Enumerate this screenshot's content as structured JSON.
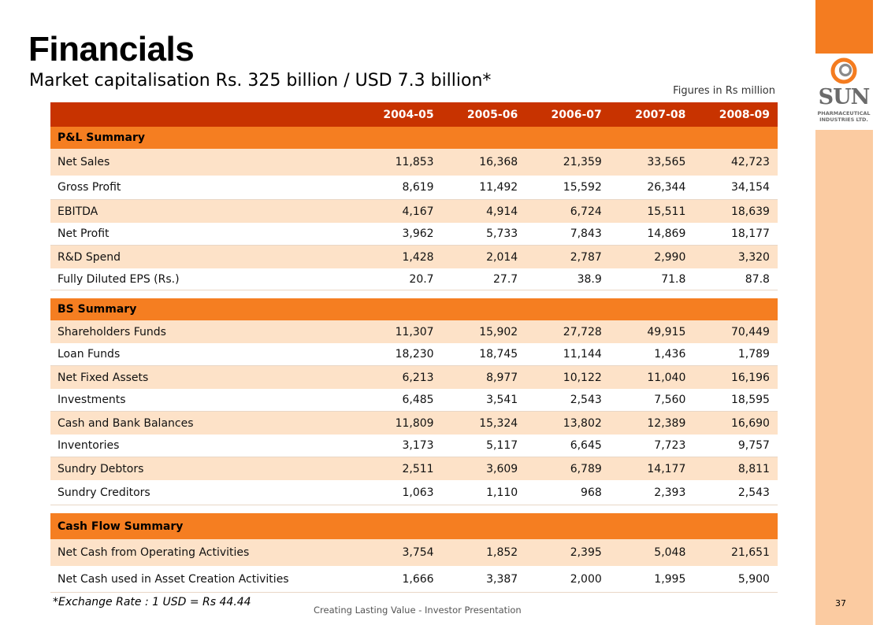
{
  "title": "Financials",
  "subtitle": "Market capitalisation Rs. 325 billion / USD 7.3 billion*",
  "units_note": "Figures in Rs million",
  "logo": {
    "name": "SUN",
    "tagline_1": "PHARMACEUTICAL",
    "tagline_2": "INDUSTRIES LTD.",
    "icon": "sun-pharma-logo-icon"
  },
  "years": [
    "2004-05",
    "2005-06",
    "2006-07",
    "2007-08",
    "2008-09"
  ],
  "sections": [
    {
      "heading": "P&L Summary",
      "rows": [
        {
          "label": "Net Sales",
          "values": [
            "11,853",
            "16,368",
            "21,359",
            "33,565",
            "42,723"
          ]
        },
        {
          "label": "Gross Profit",
          "values": [
            "8,619",
            "11,492",
            "15,592",
            "26,344",
            "34,154"
          ]
        },
        {
          "label": "EBITDA",
          "values": [
            "4,167",
            "4,914",
            "6,724",
            "15,511",
            "18,639"
          ]
        },
        {
          "label": "Net Profit",
          "values": [
            "3,962",
            "5,733",
            "7,843",
            "14,869",
            "18,177"
          ]
        },
        {
          "label": "R&D Spend",
          "values": [
            "1,428",
            "2,014",
            "2,787",
            "2,990",
            "3,320"
          ]
        },
        {
          "label": "Fully Diluted EPS (Rs.)",
          "values": [
            "20.7",
            "27.7",
            "38.9",
            "71.8",
            "87.8"
          ]
        }
      ]
    },
    {
      "heading": "BS Summary",
      "rows": [
        {
          "label": "Shareholders Funds",
          "values": [
            "11,307",
            "15,902",
            "27,728",
            "49,915",
            "70,449"
          ]
        },
        {
          "label": "Loan Funds",
          "values": [
            "18,230",
            "18,745",
            "11,144",
            "1,436",
            "1,789"
          ]
        },
        {
          "label": "Net Fixed Assets",
          "values": [
            "6,213",
            "8,977",
            "10,122",
            "11,040",
            "16,196"
          ]
        },
        {
          "label": "Investments",
          "values": [
            "6,485",
            "3,541",
            "2,543",
            "7,560",
            "18,595"
          ]
        },
        {
          "label": "Cash and Bank Balances",
          "values": [
            "11,809",
            "15,324",
            "13,802",
            "12,389",
            "16,690"
          ]
        },
        {
          "label": "Inventories",
          "values": [
            "3,173",
            "5,117",
            "6,645",
            "7,723",
            "9,757"
          ]
        },
        {
          "label": "Sundry Debtors",
          "values": [
            "2,511",
            "3,609",
            "6,789",
            "14,177",
            "8,811"
          ]
        },
        {
          "label": "Sundry Creditors",
          "values": [
            "1,063",
            "1,110",
            "968",
            "2,393",
            "2,543"
          ]
        }
      ]
    },
    {
      "heading": "Cash Flow Summary",
      "rows": [
        {
          "label": "Net Cash from Operating Activities",
          "values": [
            "3,754",
            "1,852",
            "2,395",
            "5,048",
            "21,651"
          ]
        },
        {
          "label": "Net Cash used in Asset Creation Activities",
          "values": [
            "1,666",
            "3,387",
            "2,000",
            "1,995",
            "5,900"
          ]
        }
      ]
    }
  ],
  "footnote": "*Exchange Rate : 1 USD = Rs 44.44",
  "footer": "Creating Lasting Value - Investor Presentation",
  "page_number": "37",
  "colors": {
    "header_red": "#c83300",
    "section_orange": "#f57e21",
    "row_peach": "#fde2c8",
    "side_orange": "#f47c20",
    "side_peach": "#fbcba1"
  }
}
